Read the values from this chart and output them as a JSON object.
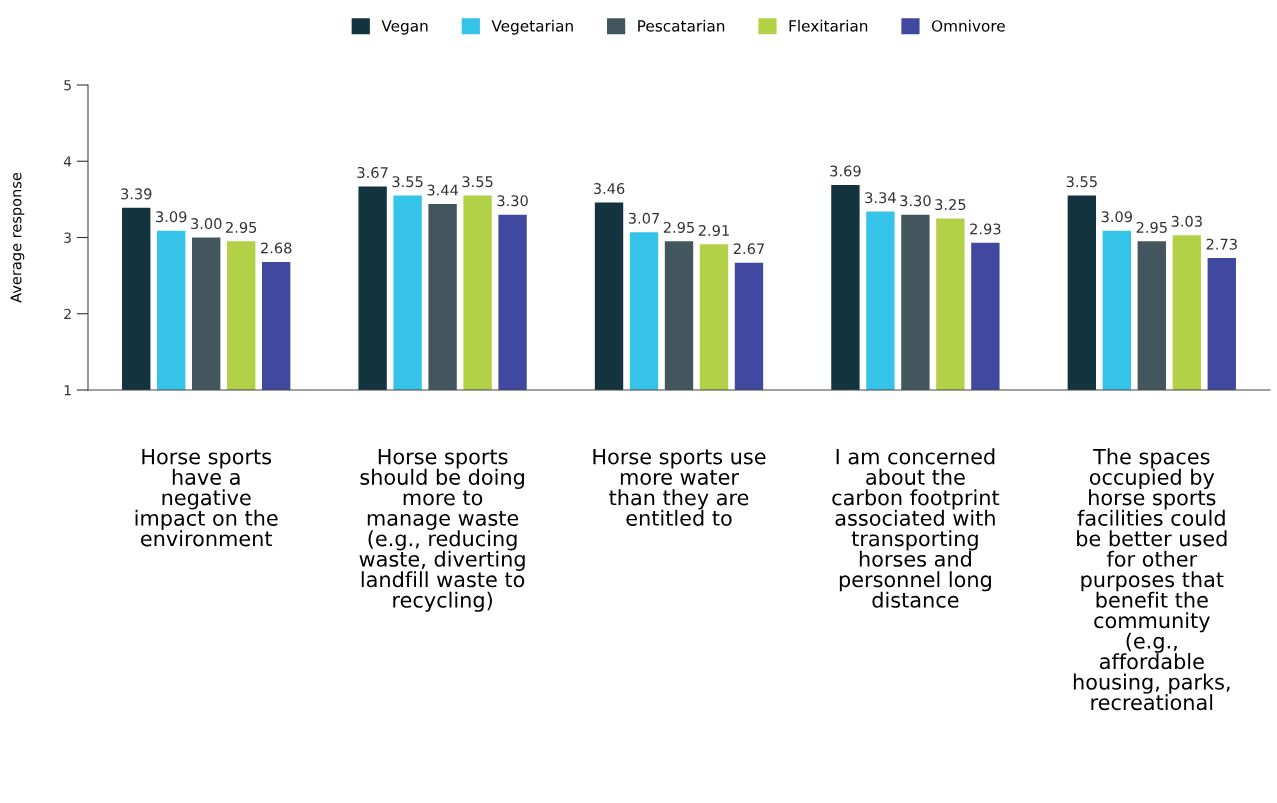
{
  "chart_data": {
    "type": "bar",
    "ylabel": "Average response",
    "categories": [
      "Horse sports\nhave a\nnegative\nimpact on the\nenvironment",
      "Horse sports\nshould be doing\nmore to\nmanage waste\n(e.g., reducing\nwaste, diverting\nlandfill waste to\nrecycling)",
      "Horse sports use\nmore water\nthan they are\nentitled to",
      "I am concerned\nabout the\ncarbon footprint\nassociated with\ntransporting\nhorses and\npersonnel long\ndistance",
      "The spaces\noccupied by\nhorse sports\nfacilities could\nbe better used\nfor other\npurposes that\nbenefit the\ncommunity\n(e.g.,\naffordable\nhousing, parks,\nrecreational"
    ],
    "series": [
      {
        "name": "Vegan",
        "color": "#13343f",
        "values": [
          3.39,
          3.67,
          3.46,
          3.69,
          3.55
        ],
        "value_labels": [
          "3.39",
          "3.67",
          "3.46",
          "3.69",
          "3.55"
        ]
      },
      {
        "name": "Vegetarian",
        "color": "#36c3ea",
        "values": [
          3.09,
          3.55,
          3.07,
          3.34,
          3.09
        ],
        "value_labels": [
          "3.09",
          "3.55",
          "3.07",
          "3.34",
          "3.09"
        ]
      },
      {
        "name": "Pescatarian",
        "color": "#44565d",
        "values": [
          3.0,
          3.44,
          2.95,
          3.3,
          2.95
        ],
        "value_labels": [
          "3.00",
          "3.44",
          "2.95",
          "3.30",
          "2.95"
        ]
      },
      {
        "name": "Flexitarian",
        "color": "#b2d147",
        "values": [
          2.95,
          3.55,
          2.91,
          3.25,
          3.03
        ],
        "value_labels": [
          "2.95",
          "3.55",
          "2.91",
          "3.25",
          "3.03"
        ]
      },
      {
        "name": "Omnivore",
        "color": "#4048a0",
        "values": [
          2.68,
          3.3,
          2.67,
          2.93,
          2.73
        ],
        "value_labels": [
          "2.68",
          "3.30",
          "2.67",
          "2.93",
          "2.73"
        ]
      }
    ],
    "ylim": [
      1,
      5
    ],
    "yticks": [
      1,
      2,
      3,
      4,
      5
    ],
    "grid": false,
    "legend": "top"
  }
}
